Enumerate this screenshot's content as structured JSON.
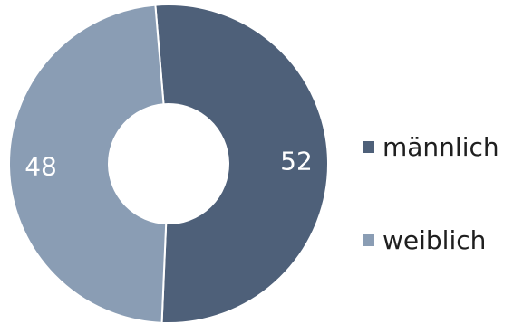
{
  "chart_data": {
    "type": "pie",
    "variant": "donut",
    "title": "",
    "categories": [
      "männlich",
      "weiblich"
    ],
    "values": [
      52,
      48
    ],
    "data_labels": [
      "52",
      "48"
    ],
    "colors": [
      "#4e6079",
      "#8a9db4"
    ],
    "legend": {
      "position": "right",
      "entries": [
        "männlich",
        "weiblich"
      ]
    }
  }
}
